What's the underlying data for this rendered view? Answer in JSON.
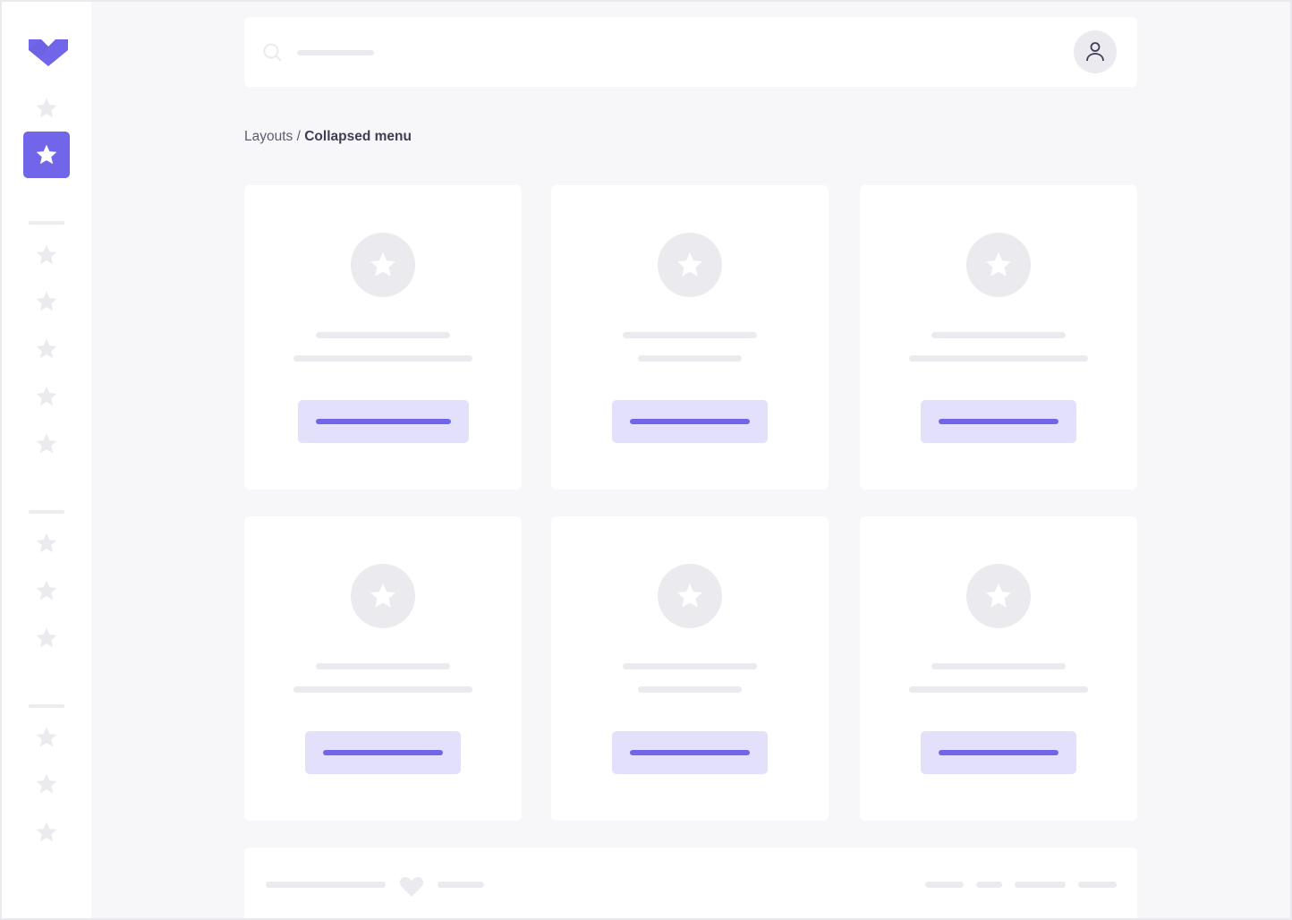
{
  "colors": {
    "accent": "#7166ea",
    "accent_light": "#e3e0fb",
    "placeholder": "#ebebef",
    "background": "#f7f7f9"
  },
  "breadcrumb": {
    "parent": "Layouts",
    "separator": "/",
    "current": "Collapsed menu"
  },
  "sidebar": {
    "active_index": 1,
    "icons": [
      "star-icon",
      "star-icon",
      "star-icon",
      "star-icon",
      "star-icon",
      "star-icon",
      "star-icon",
      "star-icon",
      "star-icon",
      "star-icon",
      "star-icon",
      "star-icon",
      "star-icon"
    ]
  },
  "header": {
    "search_icon": "search-icon",
    "avatar_icon": "user-icon"
  },
  "footer": {
    "icon": "heart-icon"
  }
}
